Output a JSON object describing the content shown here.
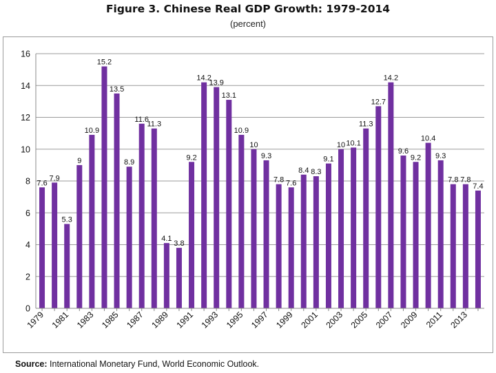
{
  "chart_data": {
    "type": "bar",
    "title": "Figure 3. Chinese Real GDP Growth: 1979-2014",
    "subtitle": "(percent)",
    "categories": [
      "1979",
      "1980",
      "1981",
      "1982",
      "1983",
      "1984",
      "1985",
      "1986",
      "1987",
      "1988",
      "1989",
      "1990",
      "1991",
      "1992",
      "1993",
      "1994",
      "1995",
      "1996",
      "1997",
      "1998",
      "1999",
      "2000",
      "2001",
      "2002",
      "2003",
      "2004",
      "2005",
      "2006",
      "2007",
      "2008",
      "2009",
      "2010",
      "2011",
      "2012",
      "2013",
      "2014"
    ],
    "values": [
      7.6,
      7.9,
      5.3,
      9,
      10.9,
      15.2,
      13.5,
      8.9,
      11.6,
      11.3,
      4.1,
      3.8,
      9.2,
      14.2,
      13.9,
      13.1,
      10.9,
      10,
      9.3,
      7.8,
      7.6,
      8.4,
      8.3,
      9.1,
      10,
      10.1,
      11.3,
      12.7,
      14.2,
      9.6,
      9.2,
      10.4,
      9.3,
      7.8,
      7.8,
      7.4
    ],
    "data_labels": [
      "7.6",
      "7.9",
      "5.3",
      "9",
      "10.9",
      "15.2",
      "13.5",
      "8.9",
      "11.6",
      "11.3",
      "4.1",
      "3.8",
      "9.2",
      "14.2",
      "13.9",
      "13.1",
      "10.9",
      "10",
      "9.3",
      "7.8",
      "7.6",
      "8.4",
      "8.3",
      "9.1",
      "10",
      "10.1",
      "11.3",
      "12.7",
      "14.2",
      "9.6",
      "9.2",
      "10.4",
      "9.3",
      "7.8",
      "7.8",
      "7.4"
    ],
    "x_tick_labels": [
      "1979",
      "1981",
      "1983",
      "1985",
      "1987",
      "1989",
      "1991",
      "1993",
      "1995",
      "1997",
      "1999",
      "2001",
      "2003",
      "2005",
      "2007",
      "2009",
      "2011",
      "2013"
    ],
    "y_tick_labels": [
      "0",
      "2",
      "4",
      "6",
      "8",
      "10",
      "12",
      "14",
      "16"
    ],
    "ylim": [
      0,
      16
    ],
    "xlabel": "",
    "ylabel": "",
    "grid": true,
    "legend": "none",
    "bar_color": "#7030a0",
    "grid_color": "#9a9a9a"
  },
  "source": {
    "label": "Source:",
    "text": "International Monetary Fund, World Economic Outlook."
  }
}
